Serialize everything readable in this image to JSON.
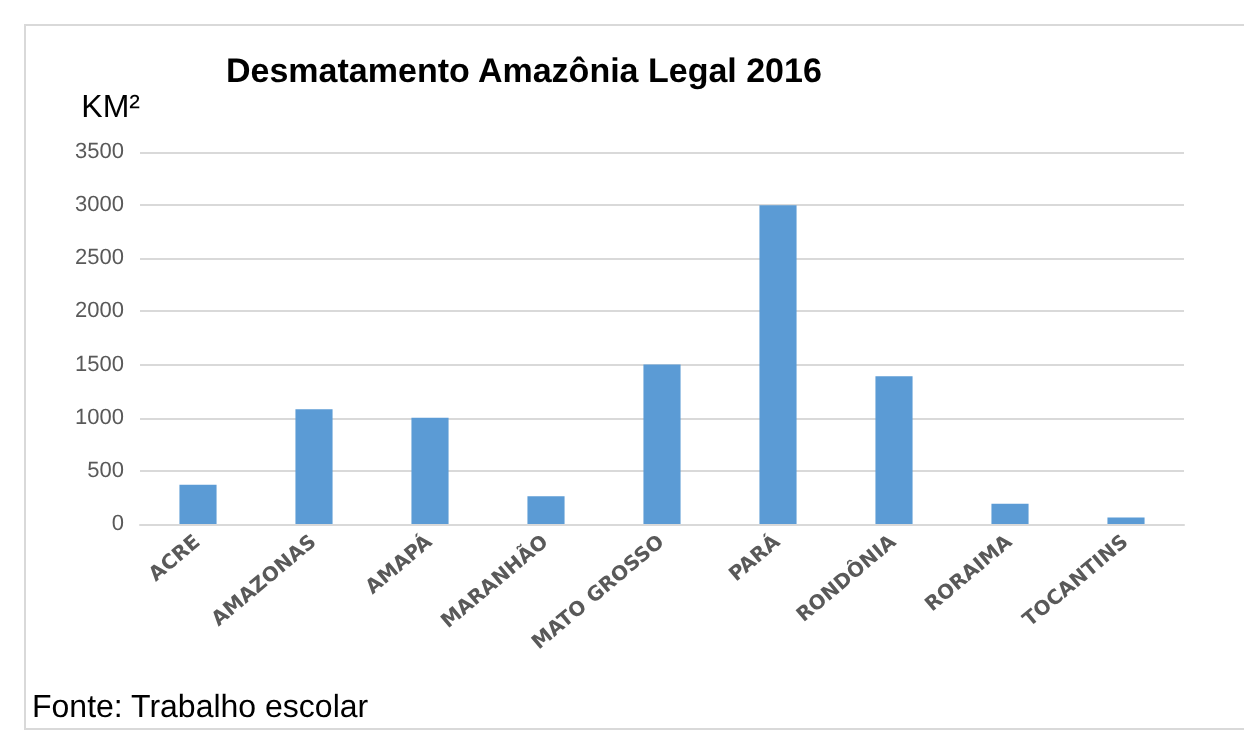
{
  "chart_data": {
    "type": "bar",
    "title": "Desmatamento Amazônia Legal 2016",
    "ylabel": "KM²",
    "categories": [
      "ACRE",
      "AMAZONAS",
      "AMAPÁ",
      "MARANHÃO",
      "MATO GROSSO",
      "PARÁ",
      "RONDÔNIA",
      "RORAIMA",
      "TOCANTINS"
    ],
    "values": [
      370,
      1080,
      1000,
      260,
      1500,
      3000,
      1390,
      190,
      60
    ],
    "color": "#5b9bd5",
    "ylim": [
      0,
      3500
    ],
    "yticks": [
      0,
      500,
      1000,
      1500,
      2000,
      2500,
      3000,
      3500
    ],
    "grid": "y",
    "annotations": [
      "Fonte: Trabalho escolar"
    ]
  }
}
